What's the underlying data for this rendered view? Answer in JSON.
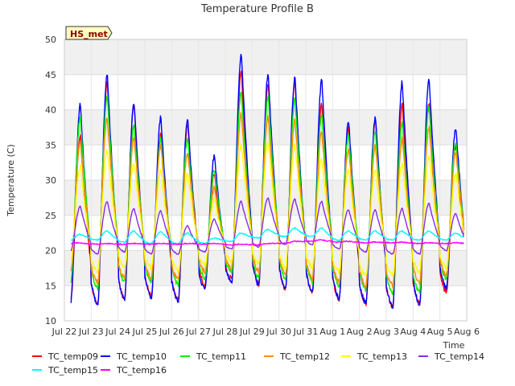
{
  "chart_data": {
    "type": "line",
    "title": "Temperature Profile B",
    "xlabel": "Time",
    "ylabel": "Temperature (C)",
    "badge": "HS_met",
    "ylim": [
      10,
      50
    ],
    "yticks": [
      10,
      15,
      20,
      25,
      30,
      35,
      40,
      45,
      50
    ],
    "xlim": [
      0,
      15
    ],
    "xticks": [
      {
        "pos": 0,
        "label": "Jul 22"
      },
      {
        "pos": 1,
        "label": "Jul 23"
      },
      {
        "pos": 2,
        "label": "Jul 24"
      },
      {
        "pos": 3,
        "label": "Jul 25"
      },
      {
        "pos": 4,
        "label": "Jul 26"
      },
      {
        "pos": 5,
        "label": "Jul 27"
      },
      {
        "pos": 6,
        "label": "Jul 28"
      },
      {
        "pos": 7,
        "label": "Jul 29"
      },
      {
        "pos": 8,
        "label": "Jul 30"
      },
      {
        "pos": 9,
        "label": "Jul 31"
      },
      {
        "pos": 10,
        "label": "Aug 1"
      },
      {
        "pos": 11,
        "label": "Aug 2"
      },
      {
        "pos": 12,
        "label": "Aug 3"
      },
      {
        "pos": 13,
        "label": "Aug 4"
      },
      {
        "pos": 14,
        "label": "Aug 5"
      },
      {
        "pos": 15,
        "label": "Aug 6"
      }
    ],
    "data_x_range": [
      0.25,
      14.9
    ],
    "grid": true,
    "legend_position": "bottom",
    "days": [
      "Jul 22",
      "Jul 23",
      "Jul 24",
      "Jul 25",
      "Jul 26",
      "Jul 27",
      "Jul 28",
      "Jul 29",
      "Jul 30",
      "Jul 31",
      "Aug 1",
      "Aug 2",
      "Aug 3",
      "Aug 4",
      "Aug 5"
    ],
    "series": [
      {
        "name": "TC_temp09",
        "color": "#ff0000",
        "daily_min": [
          12.8,
          12.5,
          13.0,
          13.5,
          13.0,
          15.0,
          16.0,
          15.2,
          14.5,
          14.0,
          13.0,
          12.5,
          12.0,
          12.5,
          14.0
        ],
        "daily_max": [
          36.5,
          44.0,
          41.0,
          36.5,
          38.0,
          31.0,
          45.5,
          44.0,
          44.0,
          41.0,
          37.5,
          38.5,
          41.0,
          41.0,
          35.0
        ]
      },
      {
        "name": "TC_temp10",
        "color": "#0000ff",
        "daily_min": [
          12.8,
          12.3,
          13.0,
          13.2,
          12.8,
          14.5,
          15.5,
          15.0,
          14.5,
          14.0,
          13.0,
          12.5,
          12.0,
          12.3,
          14.5
        ],
        "daily_max": [
          40.8,
          45.0,
          41.0,
          39.0,
          38.5,
          33.5,
          48.0,
          45.0,
          44.5,
          44.2,
          38.5,
          39.0,
          44.0,
          44.5,
          37.5
        ]
      },
      {
        "name": "TC_temp11",
        "color": "#00ee00",
        "daily_min": [
          15.5,
          14.5,
          15.5,
          15.5,
          15.2,
          16.0,
          17.0,
          16.0,
          16.0,
          15.5,
          15.0,
          14.5,
          14.0,
          14.0,
          16.0
        ],
        "daily_max": [
          39.0,
          42.0,
          38.0,
          36.0,
          36.0,
          31.5,
          42.5,
          42.0,
          41.5,
          39.5,
          36.5,
          37.0,
          38.5,
          40.5,
          35.5
        ]
      },
      {
        "name": "TC_temp12",
        "color": "#ff8c00",
        "daily_min": [
          17.0,
          15.5,
          16.0,
          16.0,
          15.8,
          17.0,
          17.5,
          17.0,
          16.5,
          16.0,
          15.5,
          15.0,
          15.0,
          15.5,
          16.5
        ],
        "daily_max": [
          35.5,
          39.0,
          36.0,
          35.0,
          34.0,
          29.0,
          39.5,
          39.0,
          38.5,
          37.0,
          34.5,
          35.0,
          36.0,
          37.5,
          34.0
        ]
      },
      {
        "name": "TC_temp13",
        "color": "#ffff00",
        "daily_min": [
          18.5,
          17.0,
          17.5,
          17.5,
          17.0,
          18.0,
          18.5,
          18.0,
          17.5,
          17.5,
          17.0,
          16.5,
          16.5,
          17.0,
          17.5
        ],
        "daily_max": [
          32.0,
          34.5,
          32.5,
          31.5,
          31.0,
          27.5,
          35.0,
          35.5,
          35.0,
          33.0,
          31.5,
          31.5,
          32.5,
          33.5,
          31.0
        ]
      },
      {
        "name": "TC_temp14",
        "color": "#8a2be2",
        "daily_min": [
          20.0,
          19.5,
          19.8,
          19.5,
          19.5,
          19.8,
          20.2,
          20.5,
          20.8,
          20.8,
          20.2,
          19.8,
          19.5,
          19.5,
          20.0
        ],
        "daily_max": [
          26.3,
          27.0,
          26.0,
          25.7,
          23.5,
          24.5,
          27.0,
          27.5,
          27.3,
          27.0,
          25.8,
          25.8,
          26.0,
          26.7,
          25.3
        ]
      },
      {
        "name": "TC_temp15",
        "color": "#00ffff",
        "daily_min": [
          21.5,
          21.5,
          21.2,
          21.0,
          21.0,
          21.0,
          21.3,
          21.8,
          22.0,
          22.0,
          21.5,
          21.5,
          21.5,
          21.5,
          21.5
        ],
        "daily_max": [
          22.3,
          22.8,
          22.8,
          22.7,
          22.5,
          21.8,
          22.5,
          23.0,
          23.2,
          23.2,
          22.8,
          22.8,
          22.8,
          22.8,
          22.5
        ]
      },
      {
        "name": "TC_temp16",
        "color": "#ff00ff",
        "daily_min": [
          21.0,
          20.9,
          20.9,
          20.9,
          20.9,
          20.9,
          20.8,
          20.8,
          21.0,
          21.3,
          21.2,
          21.1,
          21.1,
          21.0,
          21.0
        ],
        "daily_max": [
          21.1,
          21.0,
          21.0,
          21.0,
          21.0,
          21.0,
          20.9,
          21.0,
          21.3,
          21.5,
          21.3,
          21.2,
          21.2,
          21.1,
          21.1
        ]
      }
    ]
  }
}
